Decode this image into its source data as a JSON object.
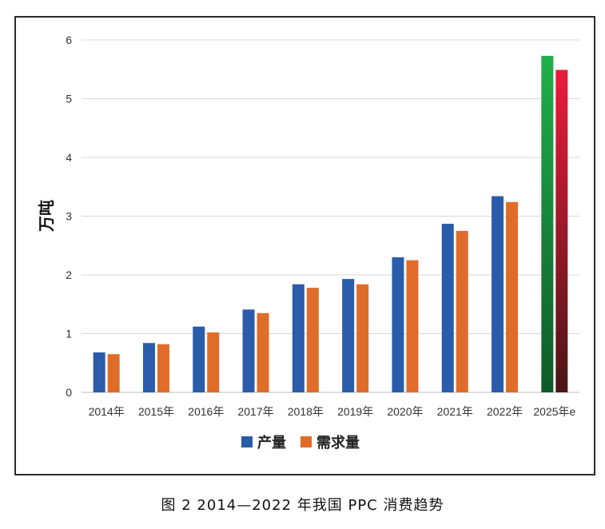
{
  "caption": "图 2  2014—2022 年我国 PPC 消费趋势",
  "chart_data": {
    "type": "bar",
    "ylabel": "万吨",
    "xlabel": "",
    "ylim": [
      0,
      6
    ],
    "yticks": [
      0,
      1,
      2,
      3,
      4,
      5,
      6
    ],
    "grid": true,
    "legend": "bottom",
    "categories": [
      "2014年",
      "2015年",
      "2016年",
      "2017年",
      "2018年",
      "2019年",
      "2020年",
      "2021年",
      "2022年",
      "2025年e"
    ],
    "series": [
      {
        "name": "产量",
        "color": "#2a5caa",
        "values": [
          0.68,
          0.84,
          1.12,
          1.41,
          1.84,
          1.93,
          2.3,
          2.87,
          3.34,
          5.73
        ]
      },
      {
        "name": "需求量",
        "color": "#e06c2a",
        "values": [
          0.65,
          0.82,
          1.02,
          1.35,
          1.78,
          1.84,
          2.25,
          2.75,
          3.24,
          5.49
        ]
      }
    ],
    "highlight": {
      "category": "2025年e",
      "series_colors": [
        {
          "top": "#1fb04a",
          "bottom": "#0f5a28"
        },
        {
          "top": "#ea1c3c",
          "bottom": "#4a1515"
        }
      ]
    }
  }
}
